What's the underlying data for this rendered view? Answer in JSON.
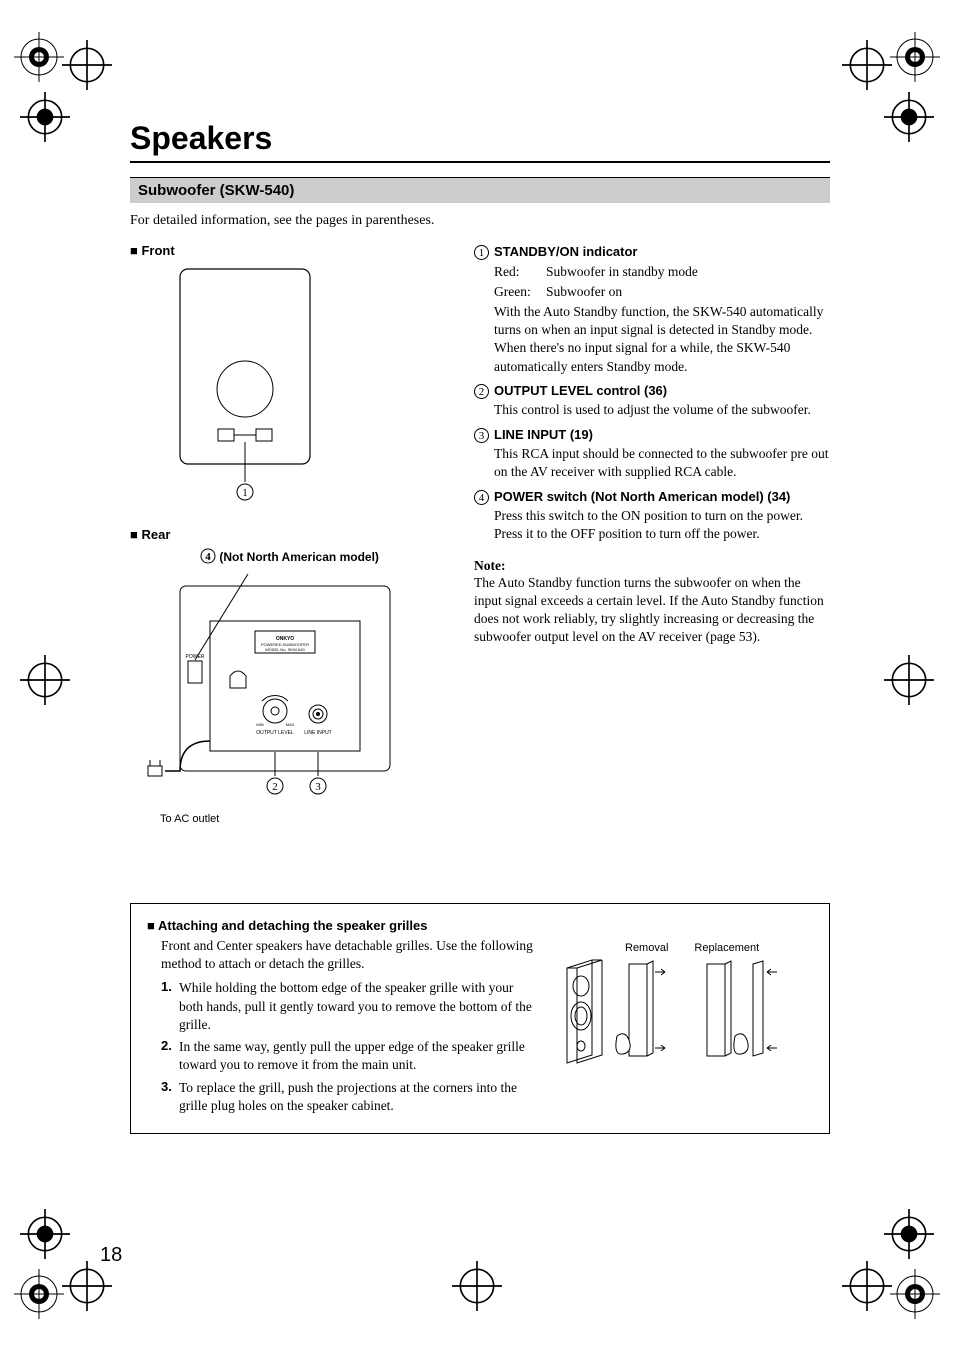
{
  "title": "Speakers",
  "section_bar": "Subwoofer (SKW-540)",
  "intro": "For detailed information, see the pages in parentheses.",
  "left": {
    "front_label": "Front",
    "rear_label": "Rear",
    "callout4_caption": "(Not North American model)",
    "ac_label": "To AC outlet"
  },
  "items": [
    {
      "num": "1",
      "title": "STANDBY/ON indicator",
      "kv": [
        {
          "k": "Red:",
          "v": "Subwoofer in standby mode"
        },
        {
          "k": "Green:",
          "v": "Subwoofer on"
        }
      ],
      "text": "With the Auto Standby function, the SKW-540 automatically turns on when an input signal is detected in Standby mode. When there's no input signal for a while, the SKW-540 automatically enters Standby mode."
    },
    {
      "num": "2",
      "title": "OUTPUT LEVEL control (36)",
      "text": "This control is used to adjust the volume of the subwoofer."
    },
    {
      "num": "3",
      "title": "LINE INPUT (19)",
      "text": "This RCA input should be connected to the subwoofer pre out on the AV receiver with supplied RCA cable."
    },
    {
      "num": "4",
      "title": "POWER switch (Not North American model) (34)",
      "text": "Press this switch to the ON position to turn on the power. Press it to the OFF position to turn off the power."
    }
  ],
  "note": {
    "head": "Note:",
    "text": "The Auto Standby function turns the subwoofer on when the input signal exceeds a certain level. If the Auto Standby function does not work reliably, try slightly increasing or decreasing the subwoofer output level on the AV receiver (page 53)."
  },
  "box": {
    "title": "Attaching and detaching the speaker grilles",
    "intro": "Front and Center speakers have detachable grilles. Use the following method to attach or detach the grilles.",
    "steps": [
      "While holding the bottom edge of the speaker grille with your both hands, pull it gently toward you to remove the bottom of the grille.",
      "In the same way, gently pull the upper edge of the speaker grille toward you to remove it from the main unit.",
      "To replace the grill, push the projections at the corners into the grille plug holes on the speaker cabinet."
    ],
    "pic_labels": {
      "removal": "Removal",
      "replacement": "Replacement"
    }
  },
  "page_num": "18",
  "colors": {
    "bar_bg": "#cccccc",
    "text": "#000000",
    "bg": "#ffffff"
  }
}
